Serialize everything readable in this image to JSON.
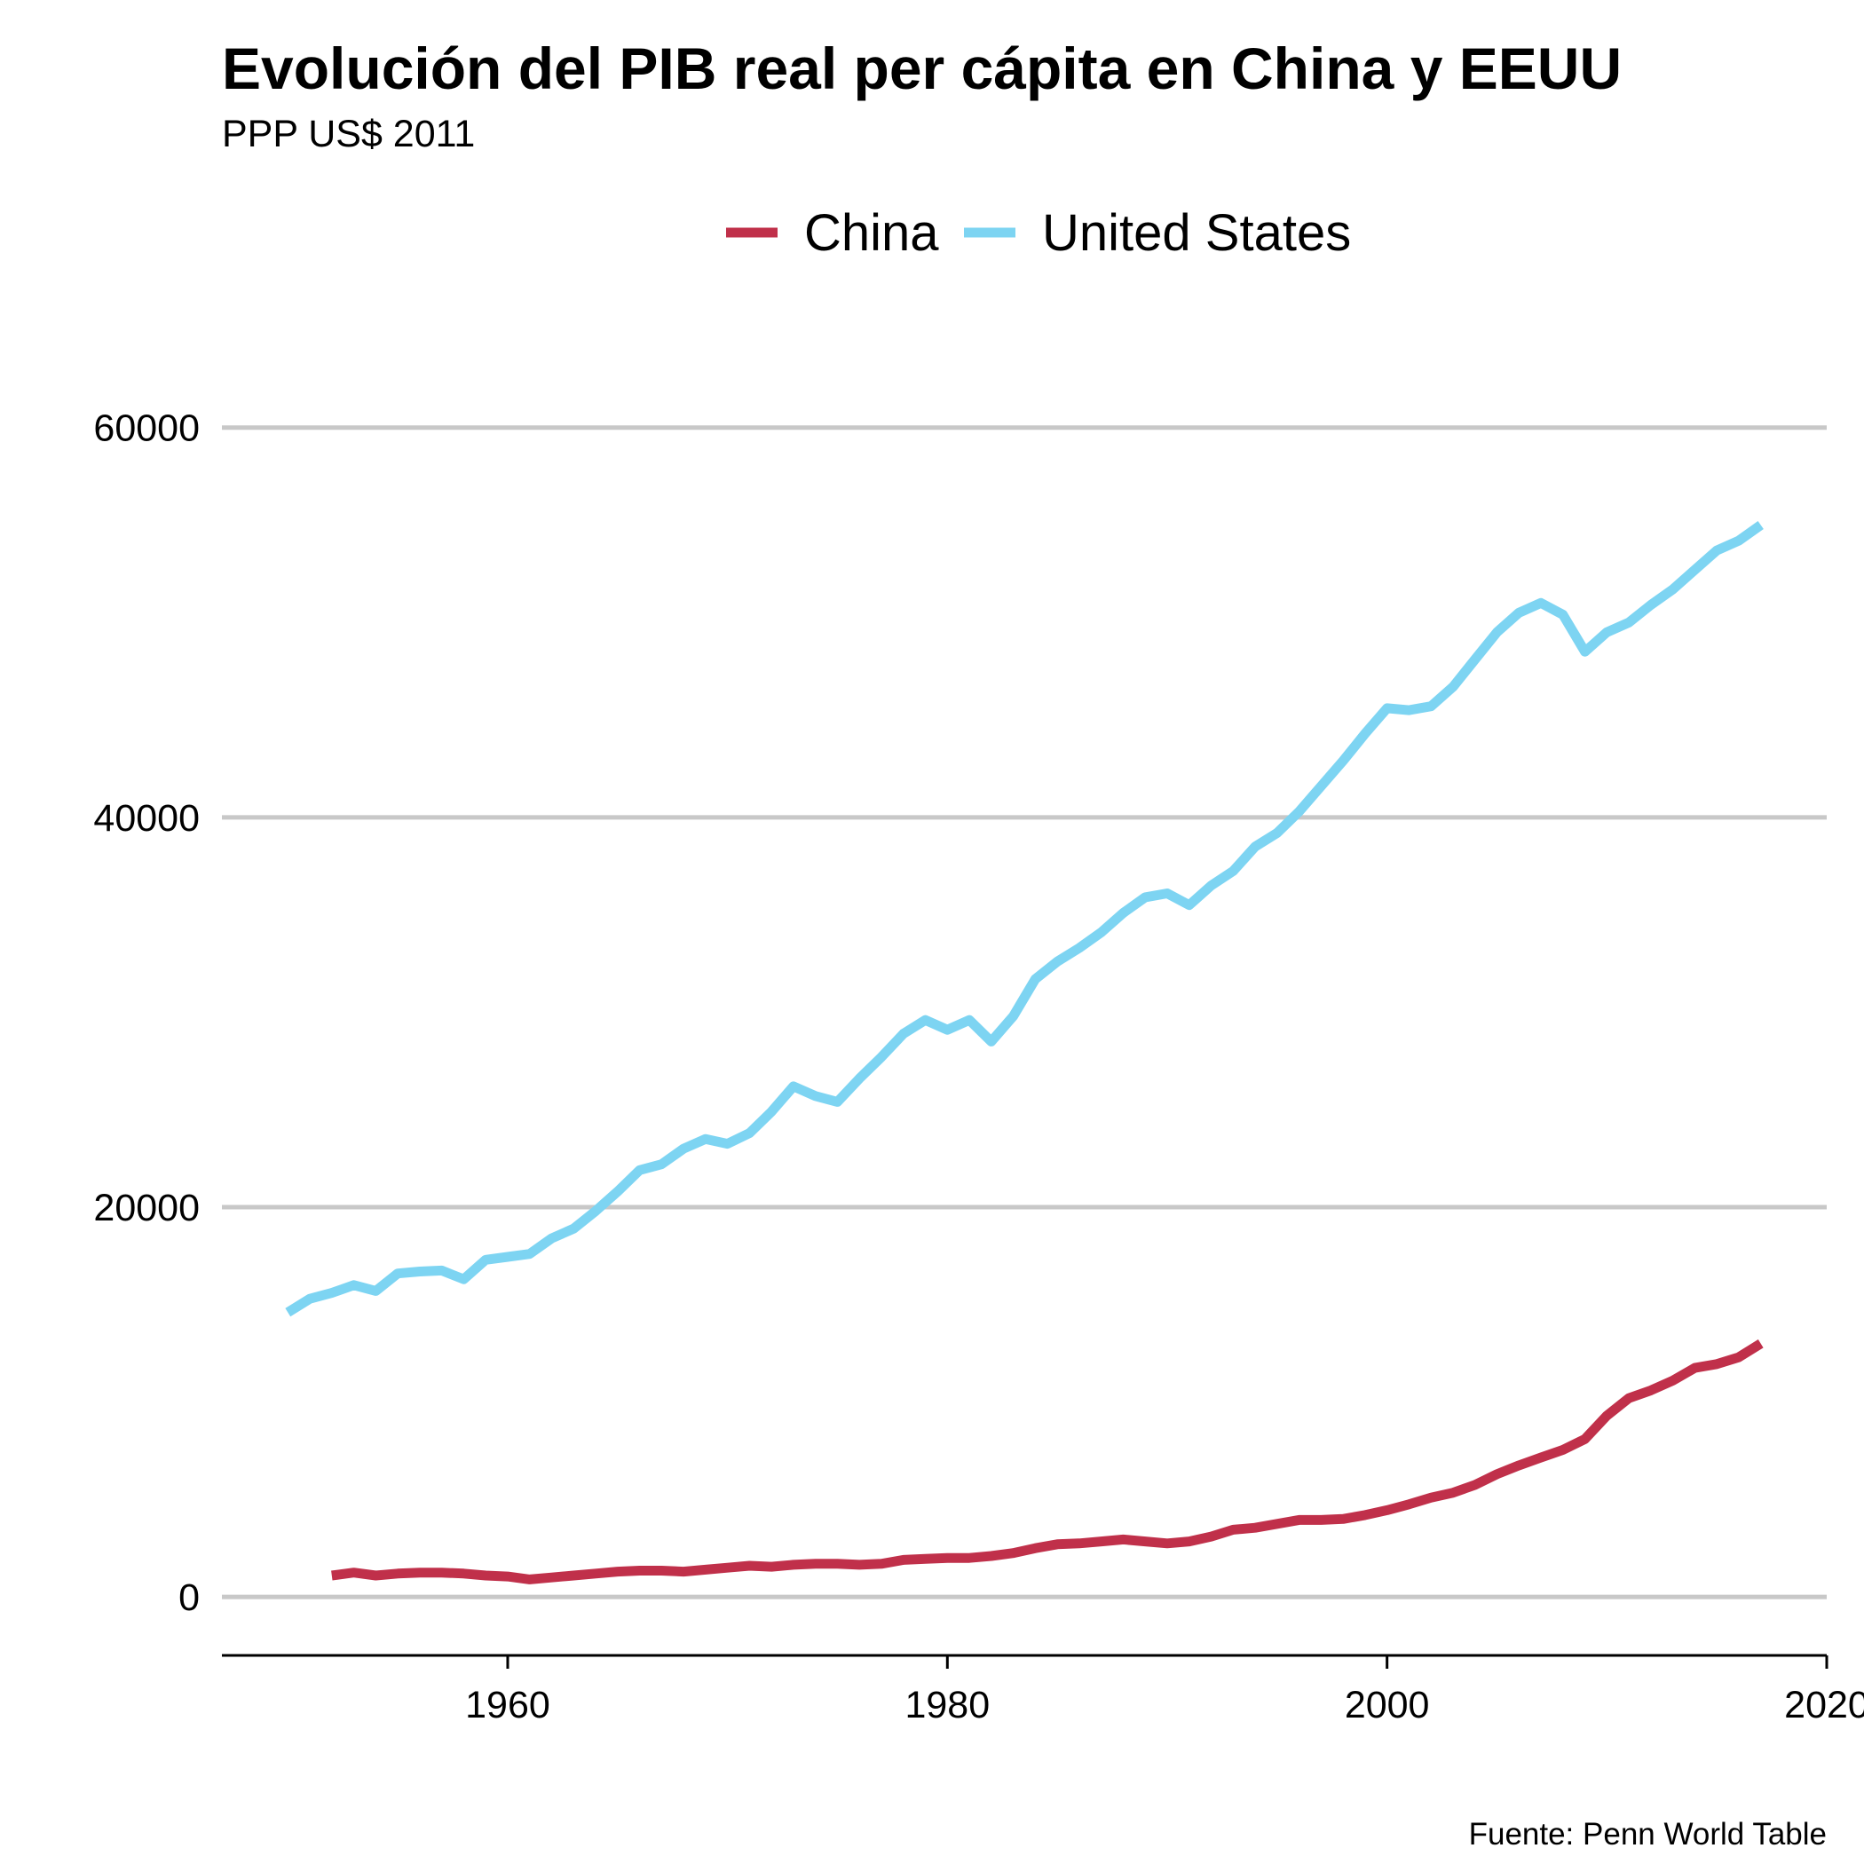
{
  "chart_data": {
    "type": "line",
    "title": "Evolución del PIB real per cápita en China y EEUU",
    "subtitle": "PPP US$ 2011",
    "caption": "Fuente: Penn World Table",
    "xlabel": "",
    "ylabel": "",
    "xlim": [
      1947,
      2020
    ],
    "ylim": [
      -3000,
      66000
    ],
    "x_ticks": [
      1960,
      1980,
      2000,
      2020
    ],
    "y_ticks": [
      0,
      20000,
      40000,
      60000
    ],
    "grid": "horizontal",
    "legend_position": "top",
    "series": [
      {
        "name": "China",
        "color": "#c0304a",
        "x": [
          1952,
          1953,
          1954,
          1955,
          1956,
          1957,
          1958,
          1959,
          1960,
          1961,
          1962,
          1963,
          1964,
          1965,
          1966,
          1967,
          1968,
          1969,
          1970,
          1971,
          1972,
          1973,
          1974,
          1975,
          1976,
          1977,
          1978,
          1979,
          1980,
          1981,
          1982,
          1983,
          1984,
          1985,
          1986,
          1987,
          1988,
          1989,
          1990,
          1991,
          1992,
          1993,
          1994,
          1995,
          1996,
          1997,
          1998,
          1999,
          2000,
          2001,
          2002,
          2003,
          2004,
          2005,
          2006,
          2007,
          2008,
          2009,
          2010,
          2011,
          2012,
          2013,
          2014,
          2015,
          2016,
          2017
        ],
        "values": [
          1100,
          1250,
          1100,
          1200,
          1250,
          1250,
          1200,
          1100,
          1050,
          900,
          1000,
          1100,
          1200,
          1300,
          1350,
          1350,
          1300,
          1400,
          1500,
          1600,
          1550,
          1650,
          1700,
          1700,
          1650,
          1700,
          1900,
          1950,
          2000,
          2000,
          2100,
          2250,
          2500,
          2700,
          2750,
          2850,
          2950,
          2850,
          2750,
          2850,
          3100,
          3450,
          3550,
          3750,
          3950,
          3950,
          4000,
          4200,
          4450,
          4750,
          5100,
          5350,
          5750,
          6300,
          6750,
          7150,
          7550,
          8100,
          9300,
          10200,
          10600,
          11100,
          11750,
          11950,
          12300,
          13000
        ]
      },
      {
        "name": "United States",
        "color": "#7dd4f2",
        "x": [
          1950,
          1951,
          1952,
          1953,
          1954,
          1955,
          1956,
          1957,
          1958,
          1959,
          1960,
          1961,
          1962,
          1963,
          1964,
          1965,
          1966,
          1967,
          1968,
          1969,
          1970,
          1971,
          1972,
          1973,
          1974,
          1975,
          1976,
          1977,
          1978,
          1979,
          1980,
          1981,
          1982,
          1983,
          1984,
          1985,
          1986,
          1987,
          1988,
          1989,
          1990,
          1991,
          1992,
          1993,
          1994,
          1995,
          1996,
          1997,
          1998,
          1999,
          2000,
          2001,
          2002,
          2003,
          2004,
          2005,
          2006,
          2007,
          2008,
          2009,
          2010,
          2011,
          2012,
          2013,
          2014,
          2015,
          2016,
          2017
        ],
        "values": [
          14600,
          15300,
          15600,
          16000,
          15700,
          16600,
          16700,
          16750,
          16300,
          17300,
          17450,
          17600,
          18400,
          18900,
          19800,
          20800,
          21900,
          22200,
          23000,
          23500,
          23250,
          23800,
          24900,
          26200,
          25700,
          25400,
          26600,
          27700,
          28900,
          29600,
          29100,
          29600,
          28500,
          29800,
          31700,
          32600,
          33300,
          34100,
          35100,
          35900,
          36100,
          35500,
          36500,
          37250,
          38500,
          39200,
          40300,
          41600,
          42900,
          44300,
          45600,
          45500,
          45700,
          46700,
          48100,
          49500,
          50500,
          51000,
          50400,
          48500,
          49500,
          50000,
          50900,
          51700,
          52700,
          53700,
          54200,
          55000
        ]
      }
    ]
  }
}
